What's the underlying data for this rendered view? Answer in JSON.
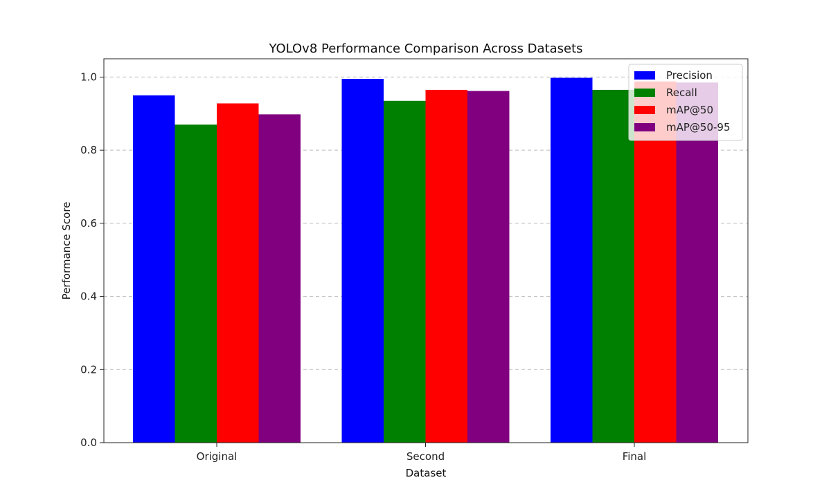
{
  "chart_data": {
    "type": "bar",
    "title": "YOLOv8 Performance Comparison Across Datasets",
    "xlabel": "Dataset",
    "ylabel": "Performance Score",
    "categories": [
      "Original",
      "Second",
      "Final"
    ],
    "ylim": [
      0,
      1.05
    ],
    "yticks": [
      "0.0",
      "0.2",
      "0.4",
      "0.6",
      "0.8",
      "1.0"
    ],
    "grid": "y-dashed",
    "legend_position": "top-right",
    "series": [
      {
        "name": "Precision",
        "color": "#0000ff",
        "values": [
          0.95,
          0.995,
          0.998
        ]
      },
      {
        "name": "Recall",
        "color": "#008000",
        "values": [
          0.87,
          0.935,
          0.965
        ]
      },
      {
        "name": "mAP@50",
        "color": "#ff0000",
        "values": [
          0.928,
          0.965,
          0.988
        ]
      },
      {
        "name": "mAP@50-95",
        "color": "#800080",
        "values": [
          0.898,
          0.962,
          0.985
        ]
      }
    ]
  }
}
